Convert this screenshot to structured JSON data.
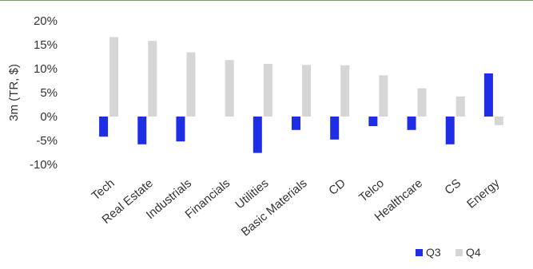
{
  "chart_data": {
    "type": "bar",
    "ylabel": "3m (TR, $)",
    "ylim": [
      -10,
      20
    ],
    "yticks": [
      "20%",
      "15%",
      "10%",
      "5%",
      "0%",
      "-5%",
      "-10%"
    ],
    "categories": [
      "Tech",
      "Real Estate",
      "Industrials",
      "Financials",
      "Utilities",
      "Basic Materials",
      "CD",
      "Telco",
      "Healthcare",
      "CS",
      "Energy"
    ],
    "series": [
      {
        "name": "Q3",
        "color": "#1f2ee6",
        "values": [
          -4.2,
          -5.8,
          -5.2,
          0,
          -7.6,
          -2.8,
          -4.8,
          -2.0,
          -2.8,
          -5.8,
          9.0
        ]
      },
      {
        "name": "Q4",
        "color": "#d6d6d6",
        "values": [
          16.6,
          15.8,
          13.4,
          11.8,
          11.0,
          10.8,
          10.7,
          8.6,
          5.9,
          4.2,
          -1.8
        ]
      }
    ],
    "legend": "bottom-right",
    "grid": false
  }
}
